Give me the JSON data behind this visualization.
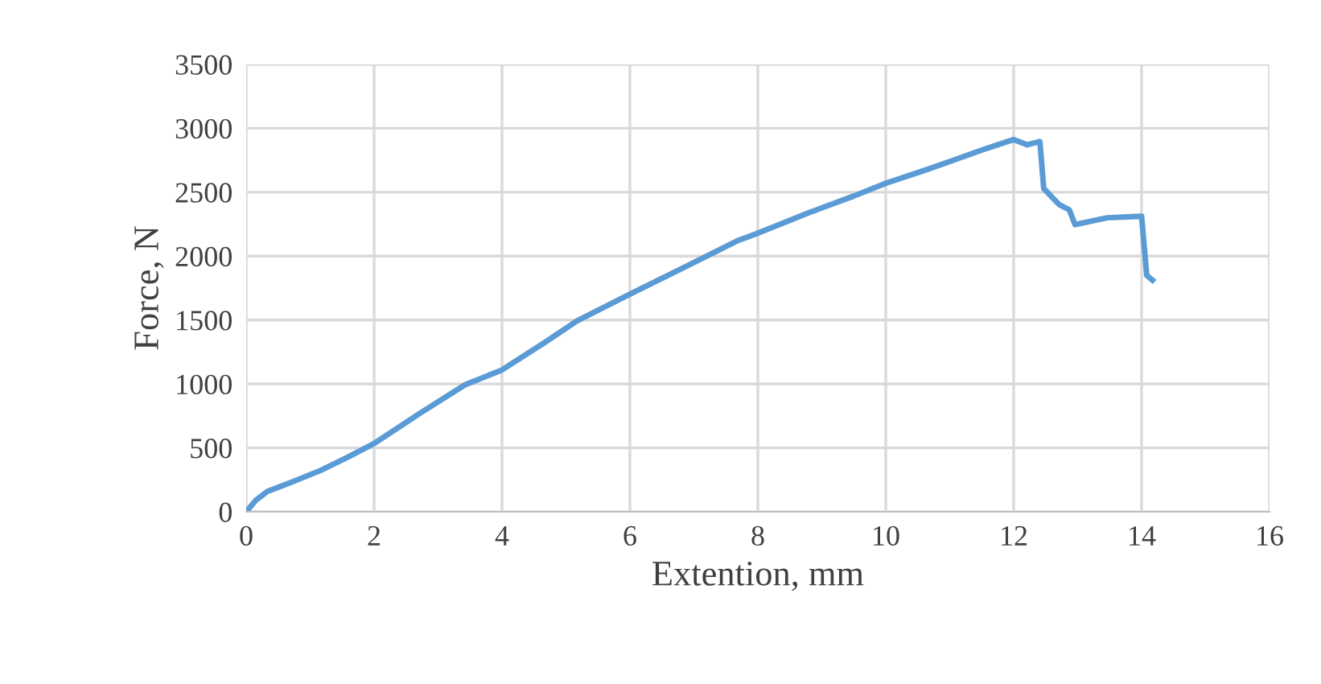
{
  "chart_data": {
    "type": "line",
    "xlabel": "Extention, mm",
    "ylabel": "Force, N",
    "series": [
      {
        "color": "#5b9bd5",
        "x": [
          0,
          0.15,
          0.33,
          0.7,
          1.17,
          1.6,
          2.0,
          2.7,
          3.42,
          4.0,
          4.67,
          5.17,
          5.96,
          6.8,
          7.67,
          8.0,
          8.8,
          9.5,
          10.0,
          10.6,
          11.0,
          11.5,
          12.0,
          12.21,
          12.41,
          12.47,
          12.71,
          12.87,
          12.96,
          13.46,
          14.0,
          14.08,
          14.17
        ],
        "values": [
          0,
          90,
          159,
          230,
          325,
          430,
          534,
          765,
          993,
          1110,
          1325,
          1493,
          1693,
          1900,
          2118,
          2180,
          2340,
          2470,
          2570,
          2670,
          2740,
          2830,
          2912,
          2871,
          2896,
          2529,
          2404,
          2362,
          2246,
          2300,
          2312,
          1850,
          1812
        ]
      }
    ],
    "xlim": [
      0,
      16
    ],
    "xticks": [
      0,
      2,
      4,
      6,
      8,
      10,
      12,
      14,
      16
    ],
    "ylim": [
      0,
      3500
    ],
    "yticks": [
      0,
      500,
      1000,
      1500,
      2000,
      2500,
      3000,
      3500
    ],
    "grid": true,
    "legend": false,
    "marker": "none",
    "line_style": "solid"
  }
}
